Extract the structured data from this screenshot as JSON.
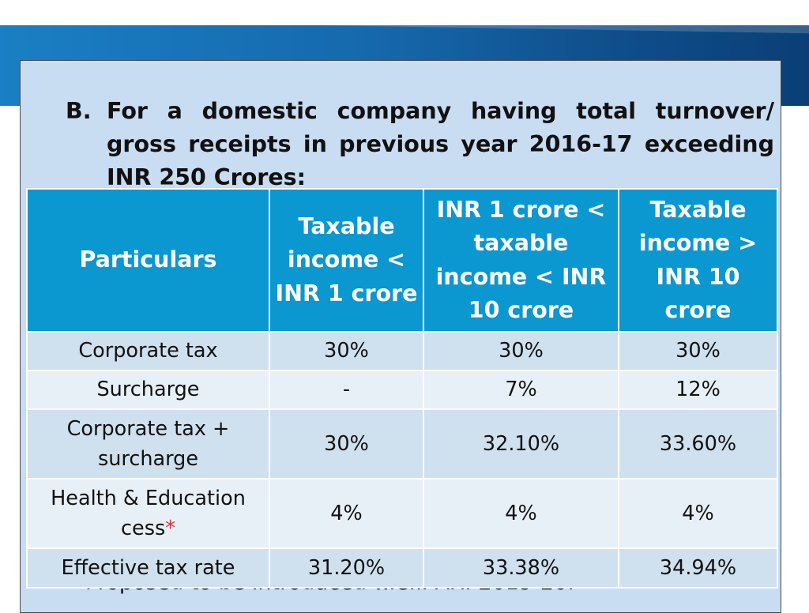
{
  "slide": {
    "heading_marker": "B.",
    "heading_text": "For a domestic company having total turnover/ gross receipts in previous year 2016-17 exceeding INR 250 Crores:",
    "footnote_text": "Proposed to be introduced w.e.f. A.Y. 2019-20.",
    "colors": {
      "header_bg": "#0b97cf",
      "row_odd_bg": "#cfe0ee",
      "row_even_bg": "#e8f0f7",
      "content_bg": "#c8dcf2",
      "asterisk": "#e03030"
    }
  },
  "table": {
    "headers": [
      "Particulars",
      "Taxable income < INR 1 crore",
      "INR 1 crore < taxable income < INR 10 crore",
      "Taxable income > INR 10 crore"
    ],
    "rows": [
      {
        "label": "Corporate tax",
        "values": [
          "30%",
          "30%",
          "30%"
        ]
      },
      {
        "label": "Surcharge",
        "values": [
          "-",
          "7%",
          "12%"
        ]
      },
      {
        "label": "Corporate tax + surcharge",
        "values": [
          "30%",
          "32.10%",
          "33.60%"
        ]
      },
      {
        "label": "Health & Education cess",
        "asterisk": "*",
        "values": [
          "4%",
          "4%",
          "4%"
        ]
      },
      {
        "label": "Effective tax rate",
        "values": [
          "31.20%",
          "33.38%",
          "34.94%"
        ]
      }
    ]
  }
}
